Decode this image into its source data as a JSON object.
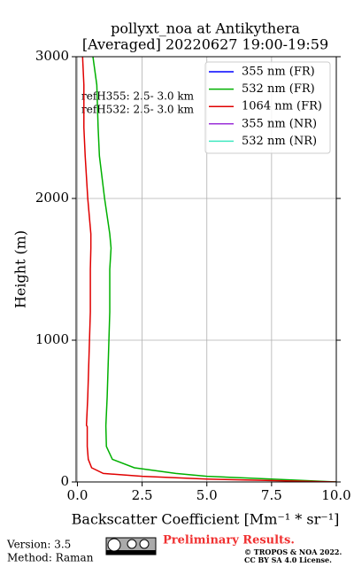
{
  "chart_data": {
    "type": "line",
    "title": "pollyxt_noa at Antikythera",
    "subtitle": "[Averaged] 20220627 19:00-19:59",
    "xlabel": "Backscatter Coefficient [Mm⁻¹ * sr⁻¹]",
    "ylabel": "Height (m)",
    "annotations": [
      "refH355:  2.5- 3.0 km",
      "refH532:  2.5- 3.0 km"
    ],
    "y": [
      0,
      20,
      40,
      60,
      100,
      160,
      250,
      390,
      400,
      600,
      900,
      1200,
      1500,
      1650,
      1750,
      2000,
      2300,
      2500,
      2800,
      3000
    ],
    "series": [
      {
        "name": "355 nm (FR)",
        "color": "#0000ff",
        "values": [
          null,
          null,
          null,
          null,
          null,
          null,
          null,
          null,
          null,
          null,
          null,
          null,
          null,
          null,
          null,
          null,
          null,
          null,
          null,
          null
        ]
      },
      {
        "name": "532 nm (FR)",
        "color": "#00b000",
        "values": [
          10,
          7.5,
          5,
          3.8,
          2.2,
          1.35,
          1.12,
          1.1,
          1.1,
          1.15,
          1.2,
          1.25,
          1.25,
          1.3,
          1.25,
          1.05,
          0.85,
          0.8,
          0.75,
          0.6
        ]
      },
      {
        "name": "1064 nm (FR)",
        "color": "#e00000",
        "values": [
          10,
          5,
          2.5,
          1.0,
          0.55,
          0.42,
          0.38,
          0.38,
          0.35,
          0.4,
          0.45,
          0.5,
          0.5,
          0.52,
          0.52,
          0.4,
          0.3,
          0.25,
          0.25,
          0.2
        ]
      },
      {
        "name": "355 nm (NR)",
        "color": "#9b30d8",
        "values": [
          null,
          null,
          null,
          null,
          null,
          null,
          null,
          null,
          null,
          null,
          null,
          null,
          null,
          null,
          null,
          null,
          null,
          null,
          null,
          null
        ]
      },
      {
        "name": "532 nm (NR)",
        "color": "#40e8c0",
        "values": [
          null,
          null,
          null,
          null,
          null,
          null,
          null,
          null,
          null,
          null,
          null,
          null,
          null,
          null,
          null,
          null,
          null,
          null,
          null,
          null
        ]
      }
    ],
    "xlim": [
      -0.05,
      10
    ],
    "ylim": [
      0,
      3000
    ],
    "xticks": [
      {
        "value": 0,
        "label": "0.0"
      },
      2.5,
      {
        "value": 5,
        "label": "5.0"
      },
      7.5,
      {
        "value": 10,
        "label": "10.0"
      }
    ],
    "yticks": [
      0,
      1000,
      2000,
      3000
    ],
    "grid": true,
    "legend": "upper right"
  },
  "footer": {
    "version": "Version: 3.5",
    "method": "Method: Raman",
    "notice": "Preliminary Results.",
    "copyright": "© TROPOS & NOA 2022.",
    "license": "CC BY SA 4.0 License."
  }
}
